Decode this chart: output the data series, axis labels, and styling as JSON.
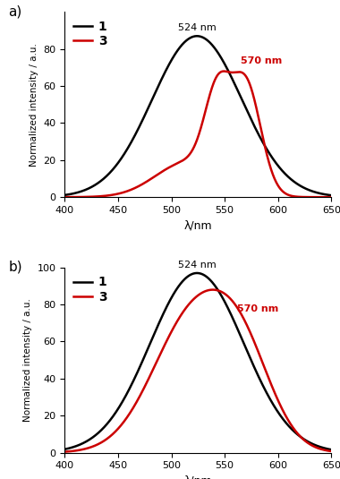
{
  "panel_a": {
    "label": "a)",
    "ylabel": "Normalized intensity / a.u.",
    "xlabel": "λ/nm",
    "xlim": [
      400,
      650
    ],
    "ylim": [
      0,
      100
    ],
    "yticks": [
      0,
      20,
      40,
      60,
      80
    ],
    "black_annotation": "524 nm",
    "red_annotation": "570 nm",
    "black_color": "#000000",
    "red_color": "#cc0000",
    "legend_labels": [
      "1",
      "3"
    ]
  },
  "panel_b": {
    "label": "b)",
    "ylabel": "Normalized intensity / a.u.",
    "xlabel": "λ/nm",
    "xlim": [
      400,
      650
    ],
    "ylim": [
      0,
      100
    ],
    "yticks": [
      0,
      20,
      40,
      60,
      80,
      100
    ],
    "black_annotation": "524 nm",
    "red_annotation": "570 nm",
    "black_color": "#000000",
    "red_color": "#cc0000",
    "legend_labels": [
      "1",
      "3"
    ]
  }
}
